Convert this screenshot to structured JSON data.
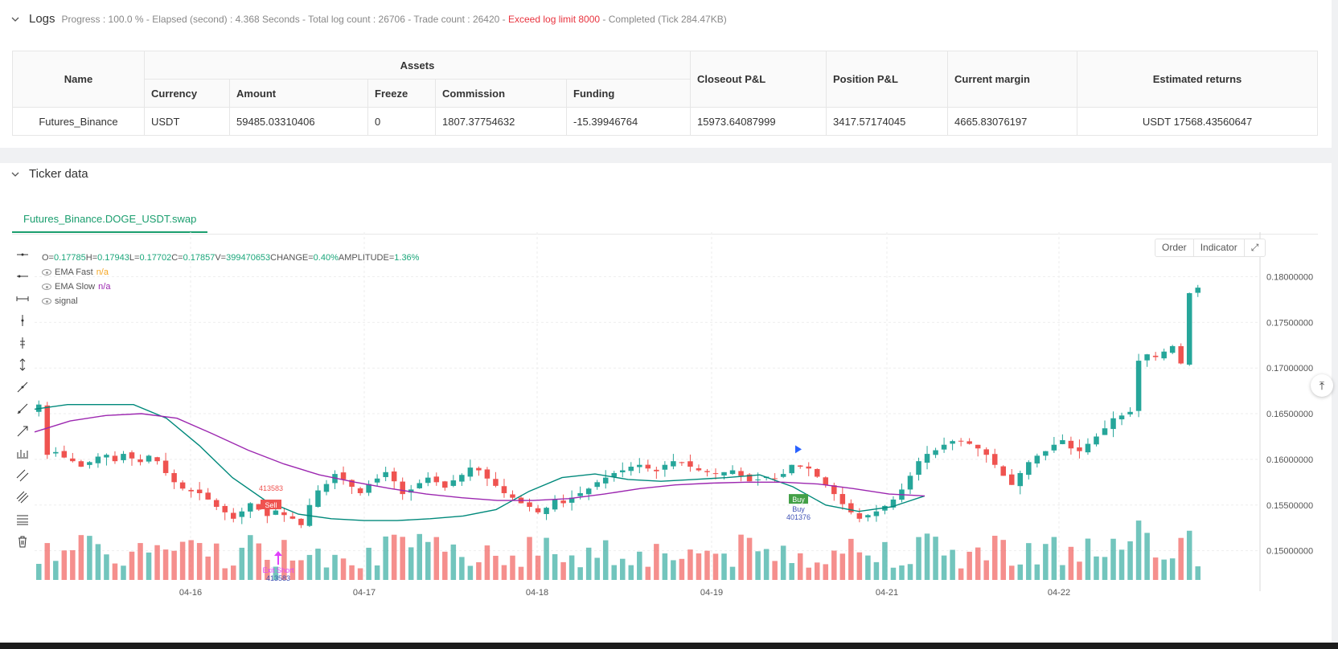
{
  "logs": {
    "title": "Logs",
    "meta_prefix": "Progress : 100.0 % - Elapsed (second) : 4.368  Seconds - Total log count : 26706 - Trade count : 26420 -",
    "meta_warn": "Exceed log limit 8000",
    "meta_suffix": "- Completed (Tick 284.47KB)"
  },
  "assets_table": {
    "headers": {
      "name": "Name",
      "assets": "Assets",
      "currency": "Currency",
      "amount": "Amount",
      "freeze": "Freeze",
      "commission": "Commission",
      "funding": "Funding",
      "closeout": "Closeout P&L",
      "position": "Position P&L",
      "margin": "Current margin",
      "returns": "Estimated returns"
    },
    "row": {
      "name": "Futures_Binance",
      "currency": "USDT",
      "amount": "59485.03310406",
      "freeze": "0",
      "commission": "1807.37754632",
      "funding": "-15.39946764",
      "closeout": "15973.64087999",
      "position": "3417.57174045",
      "margin": "4665.83076197",
      "returns": "USDT 17568.43560647"
    }
  },
  "ticker": {
    "title": "Ticker data",
    "tab": "Futures_Binance.DOGE_USDT.swap",
    "legend": {
      "ohlc": [
        {
          "k": "O=",
          "v": "0.17785"
        },
        {
          "k": "H=",
          "v": "0.17943"
        },
        {
          "k": "L=",
          "v": "0.17702"
        },
        {
          "k": "C=",
          "v": "0.17857"
        },
        {
          "k": "V=",
          "v": "399470653"
        },
        {
          "k": "CHANGE=",
          "v": "0.40%"
        },
        {
          "k": "AMPLITUDE=",
          "v": "1.36%"
        }
      ],
      "ema_fast_label": "EMA Fast",
      "ema_fast_value": "n/a",
      "ema_slow_label": "EMA Slow",
      "ema_slow_value": "n/a",
      "signal_label": "signal"
    },
    "buttons": {
      "order": "Order",
      "indicator": "Indicator"
    }
  },
  "colors": {
    "up": "#26a69a",
    "down": "#ef5350",
    "ema_fast": "#00897b",
    "ema_slow": "#9c27b0",
    "accent": "#1a9e6e"
  },
  "chart_data": {
    "type": "candlestick",
    "symbol": "Futures_Binance.DOGE_USDT.swap",
    "x_ticks": [
      "04-16",
      "04-17",
      "04-18",
      "04-19",
      "04-21",
      "04-22"
    ],
    "y_ticks": [
      "0.18000000",
      "0.17500000",
      "0.17000000",
      "0.16500000",
      "0.16000000",
      "0.15500000",
      "0.15000000"
    ],
    "ylim": [
      0.1468,
      0.184
    ],
    "closes": [
      0.166,
      0.1605,
      0.1608,
      0.1602,
      0.1598,
      0.1592,
      0.1597,
      0.1603,
      0.1605,
      0.1598,
      0.1606,
      0.1601,
      0.1597,
      0.1604,
      0.1598,
      0.1585,
      0.1575,
      0.1568,
      0.1565,
      0.1563,
      0.1556,
      0.1548,
      0.1542,
      0.1535,
      0.1543,
      0.1552,
      0.1545,
      0.1538,
      0.1544,
      0.1539,
      0.1535,
      0.1528,
      0.155,
      0.1566,
      0.1573,
      0.1584,
      0.1578,
      0.157,
      0.1563,
      0.1573,
      0.1579,
      0.1586,
      0.1576,
      0.1562,
      0.1567,
      0.1574,
      0.158,
      0.1575,
      0.1569,
      0.1577,
      0.1583,
      0.1591,
      0.1588,
      0.1579,
      0.1571,
      0.1563,
      0.1558,
      0.1552,
      0.1548,
      0.1542,
      0.1547,
      0.1556,
      0.1552,
      0.1558,
      0.1563,
      0.1568,
      0.1575,
      0.158,
      0.1585,
      0.1588,
      0.1592,
      0.1594,
      0.159,
      0.1587,
      0.1594,
      0.1598,
      0.1596,
      0.1592,
      0.1588,
      0.1586,
      0.1584,
      0.1586,
      0.1588,
      0.1582,
      0.1576,
      0.1578,
      0.1581,
      0.1579,
      0.1584,
      0.1594,
      0.1592,
      0.159,
      0.1581,
      0.1572,
      0.1562,
      0.1551,
      0.1542,
      0.1535,
      0.1539,
      0.1543,
      0.1549,
      0.1556,
      0.1567,
      0.1582,
      0.1598,
      0.1606,
      0.161,
      0.1616,
      0.162,
      0.162,
      0.1617,
      0.1612,
      0.1605,
      0.1594,
      0.1582,
      0.1572,
      0.1585,
      0.1597,
      0.1604,
      0.1609,
      0.1616,
      0.1621,
      0.1612,
      0.1609,
      0.1617,
      0.1625,
      0.1634,
      0.1645,
      0.1648,
      0.1652,
      0.1708,
      0.1715,
      0.1712,
      0.1718,
      0.1724,
      0.1705,
      0.1782,
      0.1788
    ],
    "ema_fast": [
      0.1655,
      0.166,
      0.166,
      0.166,
      0.1645,
      0.1615,
      0.158,
      0.1555,
      0.154,
      0.1535,
      0.1533,
      0.1533,
      0.1535,
      0.1538,
      0.1545,
      0.1565,
      0.158,
      0.1584,
      0.1578,
      0.1576,
      0.1578,
      0.158,
      0.1583,
      0.157,
      0.155,
      0.1543,
      0.1548,
      0.156
    ],
    "ema_slow": [
      0.163,
      0.1642,
      0.1648,
      0.165,
      0.1645,
      0.1628,
      0.161,
      0.1595,
      0.1583,
      0.1575,
      0.1568,
      0.1562,
      0.1558,
      0.1555,
      0.1555,
      0.1557,
      0.1562,
      0.1568,
      0.1572,
      0.1574,
      0.1575,
      0.1575,
      0.1573,
      0.1568,
      0.1562,
      0.156
    ],
    "annotations": [
      {
        "label": "Sell",
        "value": "413583"
      },
      {
        "label": "Exit Short",
        "value": "413583"
      },
      {
        "label": "Buy",
        "value": "401376"
      }
    ]
  }
}
